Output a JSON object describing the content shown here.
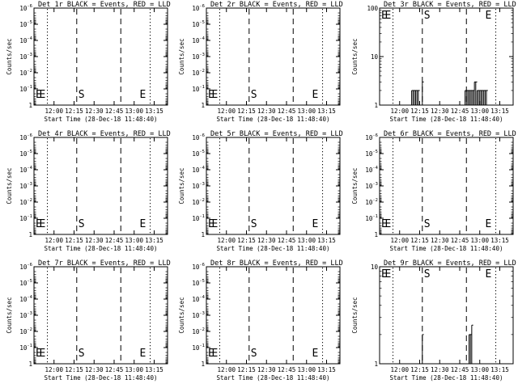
{
  "panel_titles": [
    "Det 1r BLACK = Events, RED = LLD",
    "Det 2r BLACK = Events, RED = LLD",
    "Det 3r BLACK = Events, RED = LLD",
    "Det 4r BLACK = Events, RED = LLD",
    "Det 5r BLACK = Events, RED = LLD",
    "Det 6r BLACK = Events, RED = LLD",
    "Det 7r BLACK = Events, RED = LLD",
    "Det 8r BLACK = Events, RED = LLD",
    "Det 9r BLACK = Events, RED = LLD"
  ],
  "x_axis": {
    "label": "Start Time (28-Dec-18 11:48:40)",
    "ticks": [
      "12:00",
      "12:15",
      "12:30",
      "12:45",
      "13:00",
      "13:15"
    ]
  },
  "y_axis": {
    "label": "Counts/sec"
  },
  "markers": {
    "start": "S",
    "end": "E"
  },
  "chart_data": [
    {
      "type": "line",
      "title": "Det 1r BLACK = Events, RED = LLD",
      "xlabel": "Start Time (28-Dec-18 11:48:40)",
      "ylabel": "Counts/sec",
      "y_scale": "log",
      "ylim": [
        1,
        1e-06
      ],
      "y_ticks": [
        1,
        0.1,
        0.01,
        0.001,
        0.0001,
        1e-05,
        1e-06
      ],
      "x_ticks": [
        "12:00",
        "12:15",
        "12:30",
        "12:45",
        "13:00",
        "13:15"
      ],
      "series": []
    },
    {
      "type": "line",
      "title": "Det 2r BLACK = Events, RED = LLD",
      "xlabel": "Start Time (28-Dec-18 11:48:40)",
      "ylabel": "Counts/sec",
      "y_scale": "log",
      "ylim": [
        1,
        1e-06
      ],
      "y_ticks": [
        1,
        0.1,
        0.01,
        0.001,
        0.0001,
        1e-05,
        1e-06
      ],
      "x_ticks": [
        "12:00",
        "12:15",
        "12:30",
        "12:45",
        "13:00",
        "13:15"
      ],
      "series": []
    },
    {
      "type": "bar",
      "title": "Det 3r BLACK = Events, RED = LLD",
      "xlabel": "Start Time (28-Dec-18 11:48:40)",
      "ylabel": "Counts/sec",
      "y_scale": "log",
      "ylim": [
        1,
        100
      ],
      "y_ticks": [
        1,
        10,
        100
      ],
      "x_ticks": [
        "12:00",
        "12:15",
        "12:30",
        "12:45",
        "13:00",
        "13:15"
      ],
      "series": [
        {
          "color": "#000000",
          "x": [
            "12:09",
            "12:10",
            "12:11",
            "12:12",
            "12:13",
            "12:14",
            "12:17",
            "12:49",
            "12:50",
            "12:51",
            "12:52",
            "12:53",
            "12:54",
            "12:55",
            "12:56",
            "12:57",
            "12:58",
            "12:59",
            "13:00",
            "13:01",
            "13:02",
            "13:03",
            "13:04",
            "13:05"
          ],
          "y": [
            2,
            2,
            2,
            2,
            2,
            2,
            3,
            2,
            2,
            2,
            2,
            2,
            2,
            2,
            3,
            3,
            2,
            2,
            2,
            2,
            2,
            2,
            2,
            2
          ]
        }
      ]
    },
    {
      "type": "line",
      "title": "Det 4r BLACK = Events, RED = LLD",
      "xlabel": "Start Time (28-Dec-18 11:48:40)",
      "ylabel": "Counts/sec",
      "y_scale": "log",
      "ylim": [
        1,
        1e-06
      ],
      "y_ticks": [
        1,
        0.1,
        0.01,
        0.001,
        0.0001,
        1e-05,
        1e-06
      ],
      "x_ticks": [
        "12:00",
        "12:15",
        "12:30",
        "12:45",
        "13:00",
        "13:15"
      ],
      "series": []
    },
    {
      "type": "line",
      "title": "Det 5r BLACK = Events, RED = LLD",
      "xlabel": "Start Time (28-Dec-18 11:48:40)",
      "ylabel": "Counts/sec",
      "y_scale": "log",
      "ylim": [
        1,
        1e-06
      ],
      "y_ticks": [
        1,
        0.1,
        0.01,
        0.001,
        0.0001,
        1e-05,
        1e-06
      ],
      "x_ticks": [
        "12:00",
        "12:15",
        "12:30",
        "12:45",
        "13:00",
        "13:15"
      ],
      "series": []
    },
    {
      "type": "line",
      "title": "Det 6r BLACK = Events, RED = LLD",
      "xlabel": "Start Time (28-Dec-18 11:48:40)",
      "ylabel": "Counts/sec",
      "y_scale": "log",
      "ylim": [
        1,
        1e-06
      ],
      "y_ticks": [
        1,
        0.1,
        0.01,
        0.001,
        0.0001,
        1e-05,
        1e-06
      ],
      "x_ticks": [
        "12:00",
        "12:15",
        "12:30",
        "12:45",
        "13:00",
        "13:15"
      ],
      "series": []
    },
    {
      "type": "line",
      "title": "Det 7r BLACK = Events, RED = LLD",
      "xlabel": "Start Time (28-Dec-18 11:48:40)",
      "ylabel": "Counts/sec",
      "y_scale": "log",
      "ylim": [
        1,
        1e-06
      ],
      "y_ticks": [
        1,
        0.1,
        0.01,
        0.001,
        0.0001,
        1e-05,
        1e-06
      ],
      "x_ticks": [
        "12:00",
        "12:15",
        "12:30",
        "12:45",
        "13:00",
        "13:15"
      ],
      "series": []
    },
    {
      "type": "line",
      "title": "Det 8r BLACK = Events, RED = LLD",
      "xlabel": "Start Time (28-Dec-18 11:48:40)",
      "ylabel": "Counts/sec",
      "y_scale": "log",
      "ylim": [
        1,
        1e-06
      ],
      "y_ticks": [
        1,
        0.1,
        0.01,
        0.001,
        0.0001,
        1e-05,
        1e-06
      ],
      "x_ticks": [
        "12:00",
        "12:15",
        "12:30",
        "12:45",
        "13:00",
        "13:15"
      ],
      "series": []
    },
    {
      "type": "bar",
      "title": "Det 9r BLACK = Events, RED = LLD",
      "xlabel": "Start Time (28-Dec-18 11:48:40)",
      "ylabel": "Counts/sec",
      "y_scale": "log",
      "ylim": [
        1,
        10
      ],
      "y_ticks": [
        1,
        10
      ],
      "x_ticks": [
        "12:00",
        "12:15",
        "12:30",
        "12:45",
        "13:00",
        "13:15"
      ],
      "series": [
        {
          "color": "#000000",
          "x": [
            "12:17",
            "12:52",
            "12:53",
            "12:54"
          ],
          "y": [
            2,
            2,
            2,
            2.5
          ]
        }
      ]
    }
  ]
}
